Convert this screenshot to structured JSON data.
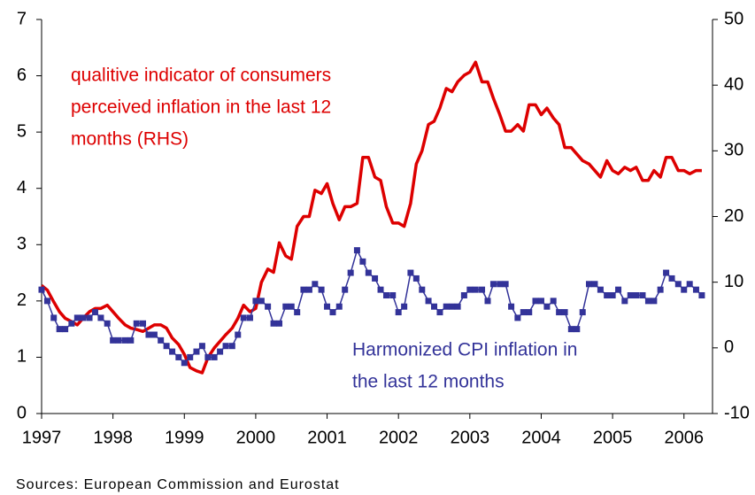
{
  "chart_data": {
    "type": "line",
    "source": "Sources: European Commission and Eurostat",
    "xlim": [
      1997,
      2006.4
    ],
    "xticks": [
      1997,
      1998,
      1999,
      2000,
      2001,
      2002,
      2003,
      2004,
      2005,
      2006
    ],
    "ylim": [
      0,
      7
    ],
    "yticks": [
      0,
      1,
      2,
      3,
      4,
      5,
      6,
      7
    ],
    "y2lim": [
      -10,
      50
    ],
    "y2ticks": [
      -10,
      0,
      10,
      20,
      30,
      40,
      50
    ],
    "x": [
      1997.0,
      1997.08,
      1997.17,
      1997.25,
      1997.33,
      1997.42,
      1997.5,
      1997.58,
      1997.67,
      1997.75,
      1997.83,
      1997.92,
      1998.0,
      1998.08,
      1998.17,
      1998.25,
      1998.33,
      1998.42,
      1998.5,
      1998.58,
      1998.67,
      1998.75,
      1998.83,
      1998.92,
      1999.0,
      1999.08,
      1999.17,
      1999.25,
      1999.33,
      1999.42,
      1999.5,
      1999.58,
      1999.67,
      1999.75,
      1999.83,
      1999.92,
      2000.0,
      2000.08,
      2000.17,
      2000.25,
      2000.33,
      2000.42,
      2000.5,
      2000.58,
      2000.67,
      2000.75,
      2000.83,
      2000.92,
      2001.0,
      2001.08,
      2001.17,
      2001.25,
      2001.33,
      2001.42,
      2001.5,
      2001.58,
      2001.67,
      2001.75,
      2001.83,
      2001.92,
      2002.0,
      2002.08,
      2002.17,
      2002.25,
      2002.33,
      2002.42,
      2002.5,
      2002.58,
      2002.67,
      2002.75,
      2002.83,
      2002.92,
      2003.0,
      2003.08,
      2003.17,
      2003.25,
      2003.33,
      2003.42,
      2003.5,
      2003.58,
      2003.67,
      2003.75,
      2003.83,
      2003.92,
      2004.0,
      2004.08,
      2004.17,
      2004.25,
      2004.33,
      2004.42,
      2004.5,
      2004.58,
      2004.67,
      2004.75,
      2004.83,
      2004.92,
      2005.0,
      2005.08,
      2005.17,
      2005.25,
      2005.33,
      2005.42,
      2005.5,
      2005.58,
      2005.67,
      2005.75,
      2005.83,
      2005.92,
      2006.0,
      2006.08,
      2006.17,
      2006.25
    ],
    "series": [
      {
        "color": "#dd0000",
        "axis": "y2",
        "markers": false,
        "values": [
          9.5,
          8.8,
          7.0,
          5.5,
          4.5,
          4.0,
          3.5,
          4.5,
          5.5,
          6.0,
          6.0,
          6.5,
          5.5,
          4.5,
          3.5,
          3.0,
          2.8,
          2.5,
          3.0,
          3.5,
          3.5,
          3.0,
          1.5,
          0.5,
          -1.0,
          -3.0,
          -3.5,
          -3.8,
          -1.5,
          0.0,
          1.0,
          2.0,
          3.0,
          4.5,
          6.5,
          5.5,
          6.0,
          10.0,
          12.0,
          11.5,
          16.0,
          14.0,
          13.5,
          18.5,
          20.0,
          20.0,
          24.0,
          23.5,
          25.0,
          22.0,
          19.5,
          21.5,
          21.5,
          22.0,
          29.0,
          29.0,
          26.0,
          25.5,
          21.5,
          19.0,
          19.0,
          18.5,
          22.0,
          28.0,
          30.0,
          34.0,
          34.5,
          36.5,
          39.5,
          39.0,
          40.5,
          41.5,
          42.0,
          43.5,
          40.5,
          40.5,
          38.0,
          35.5,
          33.0,
          33.0,
          34.0,
          33.0,
          37.0,
          37.0,
          35.5,
          36.5,
          35.0,
          34.0,
          30.5,
          30.5,
          29.5,
          28.5,
          28.0,
          27.0,
          26.0,
          28.5,
          27.0,
          26.5,
          27.5,
          27.0,
          27.5,
          25.5,
          25.5,
          27.0,
          26.0,
          29.0,
          29.0,
          27.0,
          27.0,
          26.5,
          27.0,
          27.0
        ]
      },
      {
        "color": "#333399",
        "axis": "y",
        "markers": true,
        "values": [
          2.2,
          2.0,
          1.7,
          1.5,
          1.5,
          1.6,
          1.7,
          1.7,
          1.7,
          1.8,
          1.7,
          1.6,
          1.3,
          1.3,
          1.3,
          1.3,
          1.6,
          1.6,
          1.4,
          1.4,
          1.3,
          1.2,
          1.1,
          1.0,
          0.9,
          1.0,
          1.1,
          1.2,
          1.0,
          1.0,
          1.1,
          1.2,
          1.2,
          1.4,
          1.7,
          1.7,
          2.0,
          2.0,
          1.9,
          1.6,
          1.6,
          1.9,
          1.9,
          1.8,
          2.2,
          2.2,
          2.3,
          2.2,
          1.9,
          1.8,
          1.9,
          2.2,
          2.5,
          2.9,
          2.7,
          2.5,
          2.4,
          2.2,
          2.1,
          2.1,
          1.8,
          1.9,
          2.5,
          2.4,
          2.2,
          2.0,
          1.9,
          1.8,
          1.9,
          1.9,
          1.9,
          2.1,
          2.2,
          2.2,
          2.2,
          2.0,
          2.3,
          2.3,
          2.3,
          1.9,
          1.7,
          1.8,
          1.8,
          2.0,
          2.0,
          1.9,
          2.0,
          1.8,
          1.8,
          1.5,
          1.5,
          1.8,
          2.3,
          2.3,
          2.2,
          2.1,
          2.1,
          2.2,
          2.0,
          2.1,
          2.1,
          2.1,
          2.0,
          2.0,
          2.2,
          2.5,
          2.4,
          2.3,
          2.2,
          2.3,
          2.2,
          2.1
        ]
      }
    ],
    "annotations": [
      {
        "color": "#dd0000",
        "lines": [
          "qualitive indicator of consumers",
          "perceived inflation in the last 12",
          "months (RHS)"
        ]
      },
      {
        "color": "#333399",
        "lines": [
          "Harmonized CPI inflation in",
          "the last 12 months"
        ]
      }
    ]
  }
}
